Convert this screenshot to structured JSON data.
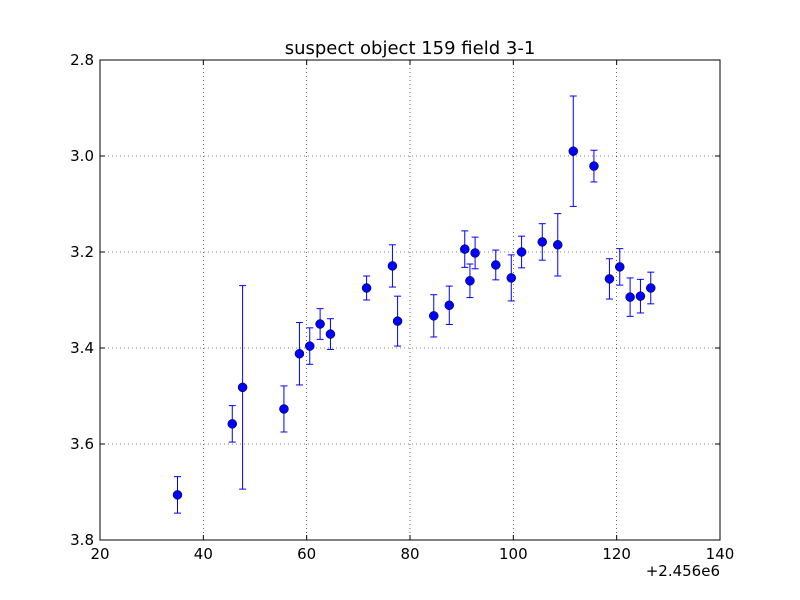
{
  "chart_data": {
    "type": "scatter",
    "title": "suspect object 159 field 3-1",
    "xlabel": "",
    "ylabel": "",
    "x_offset_label": "+2.456e6",
    "xlim": [
      20,
      140
    ],
    "ylim": [
      2.8,
      3.8
    ],
    "y_inverted": true,
    "grid": true,
    "x_ticks": [
      "20",
      "40",
      "60",
      "80",
      "100",
      "120",
      "140"
    ],
    "y_ticks": [
      "2.8",
      "3.0",
      "3.2",
      "3.4",
      "3.6",
      "3.8"
    ],
    "x_tick_values": [
      20,
      40,
      60,
      80,
      100,
      120,
      140
    ],
    "y_tick_values": [
      2.8,
      3.0,
      3.2,
      3.4,
      3.6,
      3.8
    ],
    "marker_color": "#0000ff",
    "points": [
      {
        "x": 35.0,
        "y": 3.706,
        "err": 0.038
      },
      {
        "x": 45.6,
        "y": 3.558,
        "err": 0.038
      },
      {
        "x": 47.6,
        "y": 3.482,
        "err": 0.212
      },
      {
        "x": 55.6,
        "y": 3.527,
        "err": 0.048
      },
      {
        "x": 58.6,
        "y": 3.412,
        "err": 0.065
      },
      {
        "x": 60.6,
        "y": 3.396,
        "err": 0.038
      },
      {
        "x": 62.6,
        "y": 3.35,
        "err": 0.032
      },
      {
        "x": 64.6,
        "y": 3.371,
        "err": 0.032
      },
      {
        "x": 71.6,
        "y": 3.275,
        "err": 0.025
      },
      {
        "x": 76.6,
        "y": 3.229,
        "err": 0.044
      },
      {
        "x": 77.6,
        "y": 3.344,
        "err": 0.052
      },
      {
        "x": 84.6,
        "y": 3.333,
        "err": 0.044
      },
      {
        "x": 87.6,
        "y": 3.311,
        "err": 0.04
      },
      {
        "x": 90.6,
        "y": 3.194,
        "err": 0.038
      },
      {
        "x": 91.6,
        "y": 3.26,
        "err": 0.035
      },
      {
        "x": 92.6,
        "y": 3.202,
        "err": 0.033
      },
      {
        "x": 96.6,
        "y": 3.227,
        "err": 0.031
      },
      {
        "x": 99.6,
        "y": 3.254,
        "err": 0.048
      },
      {
        "x": 101.6,
        "y": 3.2,
        "err": 0.033
      },
      {
        "x": 105.6,
        "y": 3.179,
        "err": 0.038
      },
      {
        "x": 108.6,
        "y": 3.185,
        "err": 0.065
      },
      {
        "x": 111.6,
        "y": 2.99,
        "err": 0.115
      },
      {
        "x": 115.6,
        "y": 3.021,
        "err": 0.033
      },
      {
        "x": 118.6,
        "y": 3.256,
        "err": 0.042
      },
      {
        "x": 120.6,
        "y": 3.231,
        "err": 0.038
      },
      {
        "x": 122.6,
        "y": 3.294,
        "err": 0.04
      },
      {
        "x": 124.6,
        "y": 3.292,
        "err": 0.035
      },
      {
        "x": 126.6,
        "y": 3.275,
        "err": 0.033
      }
    ]
  }
}
